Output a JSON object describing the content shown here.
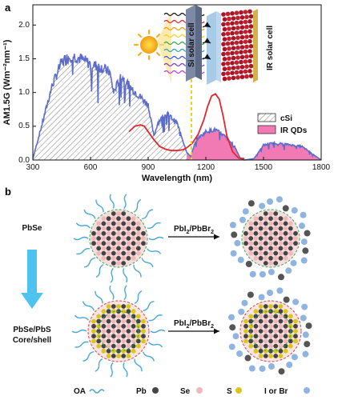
{
  "panel_a": {
    "label": "a",
    "x_title": "Wavelength (nm)",
    "y_title": "AM1.5G (Wm⁻²nm⁻¹)",
    "x_ticks": [
      "300",
      "600",
      "900",
      "1200",
      "1500",
      "1800"
    ],
    "y_ticks": [
      "0.0",
      "0.5",
      "1.0",
      "1.5",
      "2.0"
    ],
    "legend": {
      "csi": "cSi",
      "irqd": "IR QDs"
    },
    "inset": {
      "si_label": "Si solar cell",
      "ir_label": "IR solar cell"
    },
    "colors": {
      "spectrum": "#5b6ccc",
      "red_curve": "#e3262b",
      "pink_fill": "#f27ab4",
      "dash_line": "#f2d31b",
      "sun": "#f7c21b"
    }
  },
  "chart_data": {
    "type": "area",
    "xlabel": "Wavelength (nm)",
    "ylabel": "AM1.5G (Wm⁻²nm⁻¹)",
    "xlim": [
      300,
      1800
    ],
    "ylim": [
      0,
      2.3
    ],
    "series": [
      {
        "name": "cSi",
        "x": [
          300,
          350,
          400,
          450,
          500,
          550,
          600,
          650,
          700,
          750,
          800,
          850,
          900,
          950,
          1000,
          1050,
          1100
        ],
        "y": [
          0.02,
          0.55,
          1.1,
          1.45,
          1.55,
          1.5,
          1.42,
          1.38,
          1.3,
          1.2,
          1.1,
          0.96,
          0.82,
          0.55,
          0.68,
          0.55,
          0.05
        ]
      },
      {
        "name": "IR QDs",
        "x": [
          1100,
          1150,
          1200,
          1250,
          1300,
          1350,
          1400,
          1450,
          1500,
          1550,
          1600,
          1650,
          1700,
          1750,
          1800
        ],
        "y": [
          0.05,
          0.3,
          0.42,
          0.45,
          0.35,
          0.2,
          0.02,
          0.0,
          0.22,
          0.25,
          0.24,
          0.22,
          0.2,
          0.1,
          0.0
        ]
      }
    ]
  },
  "panel_b": {
    "label": "b",
    "row1_label": "PbSe",
    "row2_label_1": "PbSe/PbS",
    "row2_label_2": "Core/shell",
    "arrow_label_1": "PbI",
    "arrow_label_2": "/PbBr",
    "sub": "2",
    "legend": {
      "oa": "OA",
      "pb": "Pb",
      "se": "Se",
      "s": "S",
      "ibr": "I or Br"
    },
    "colors": {
      "oa": "#4aa8d8",
      "pb": "#444444",
      "se": "#f0b8b8",
      "s": "#d9c71a",
      "ibr": "#8fb4e0",
      "shell_dash": "#3aa84a",
      "core_dash": "#e63b3b",
      "down_arrow": "#4ec3f0"
    }
  }
}
